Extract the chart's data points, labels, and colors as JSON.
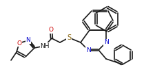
{
  "bg_color": "#ffffff",
  "line_color": "#1a1a1a",
  "bond_color": "#1a1a1a",
  "atom_colors": {
    "O": "#cc0000",
    "N": "#0000cc",
    "S": "#8b6914",
    "C": "#1a1a1a"
  },
  "figsize": [
    2.25,
    1.11
  ],
  "dpi": 100,
  "lw": 1.2,
  "fs": 6.5
}
